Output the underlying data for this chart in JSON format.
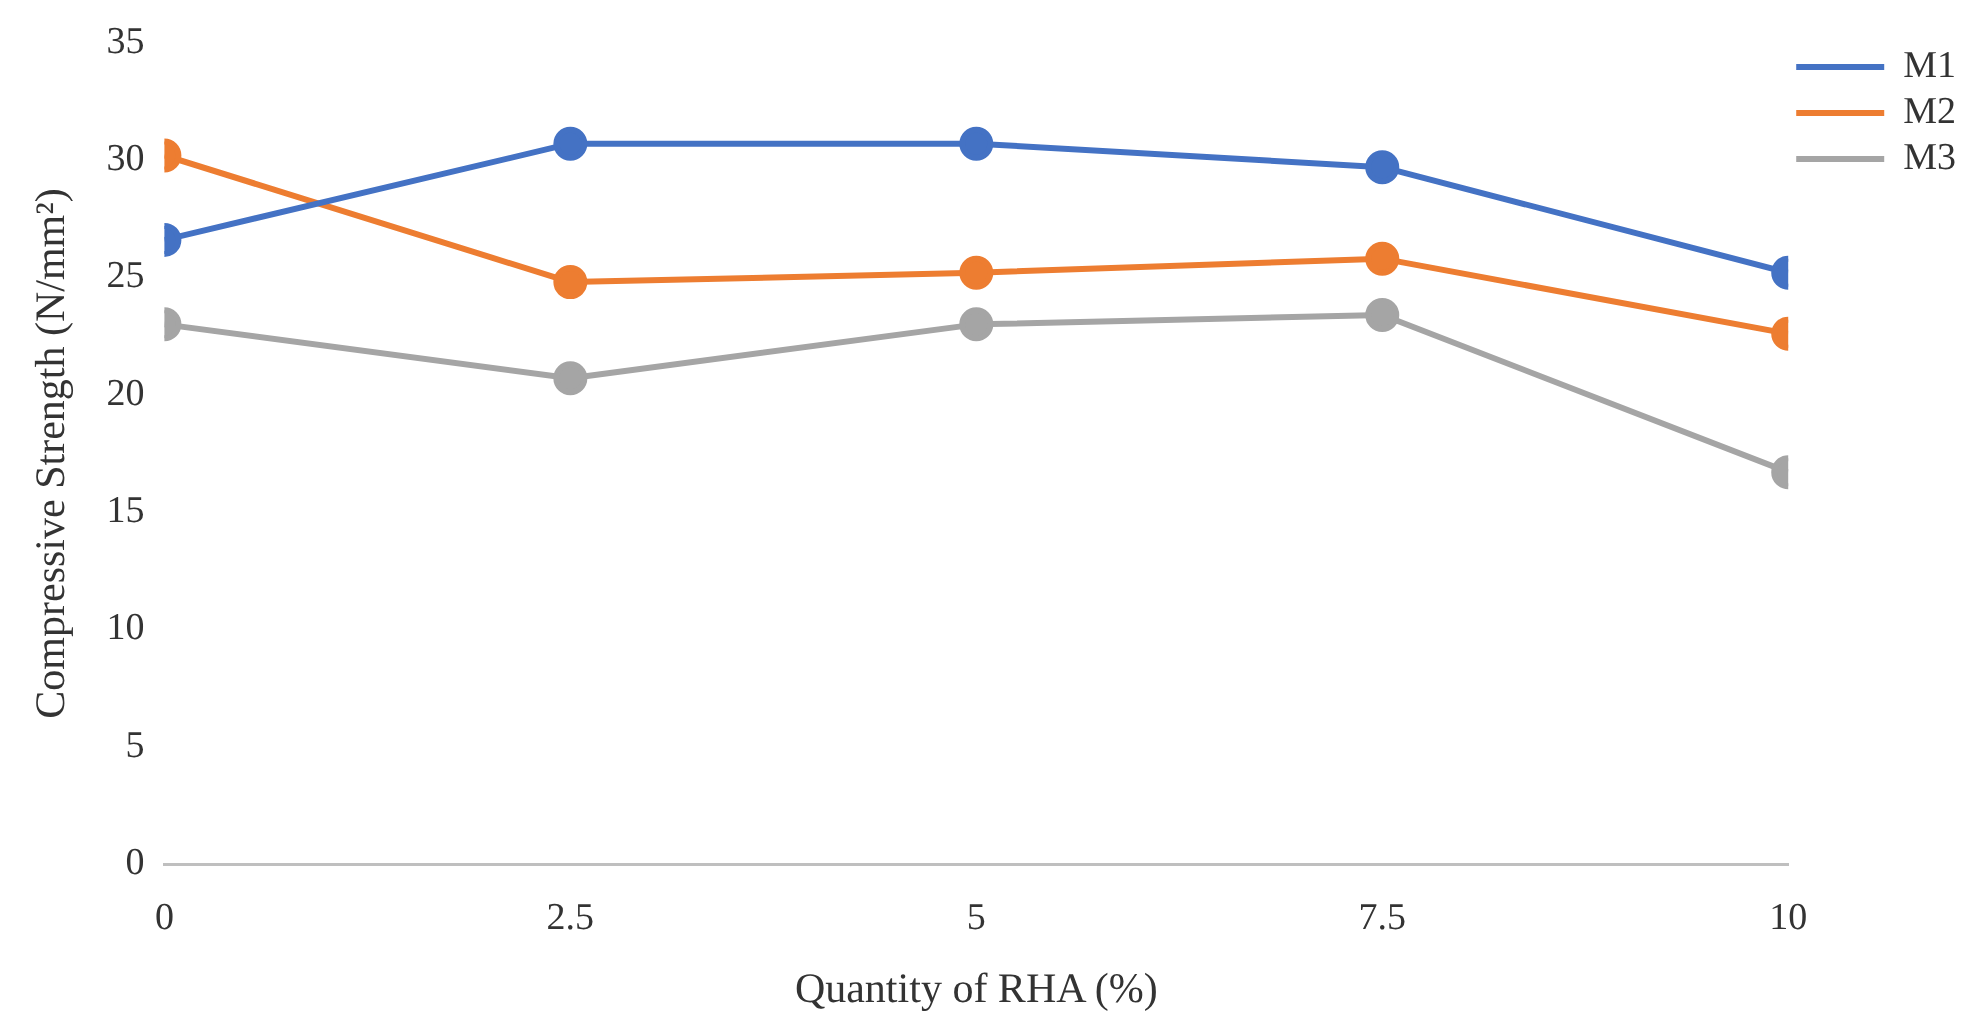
{
  "chart_data": {
    "type": "line",
    "xlabel": "Quantity of RHA (%)",
    "ylabel": "Compressive Strength (N/mm²)",
    "x": [
      0,
      2.5,
      5,
      7.5,
      10
    ],
    "series": [
      {
        "name": "M1",
        "color": "#4472c4",
        "values": [
          26.6,
          30.7,
          30.7,
          29.7,
          25.2
        ]
      },
      {
        "name": "M2",
        "color": "#ed7d31",
        "values": [
          30.2,
          24.8,
          25.2,
          25.8,
          22.6
        ]
      },
      {
        "name": "M3",
        "color": "#a5a5a5",
        "values": [
          23.0,
          20.7,
          23.0,
          23.4,
          16.7
        ]
      }
    ],
    "xlim": [
      0,
      10
    ],
    "xticks": [
      0,
      2.5,
      5,
      7.5,
      10
    ],
    "ylim": [
      0,
      35
    ],
    "yticks": [
      0,
      5,
      10,
      15,
      20,
      25,
      30,
      35
    ],
    "grid": false,
    "legend": "top right",
    "marker": "circle",
    "line_style": "solid"
  }
}
